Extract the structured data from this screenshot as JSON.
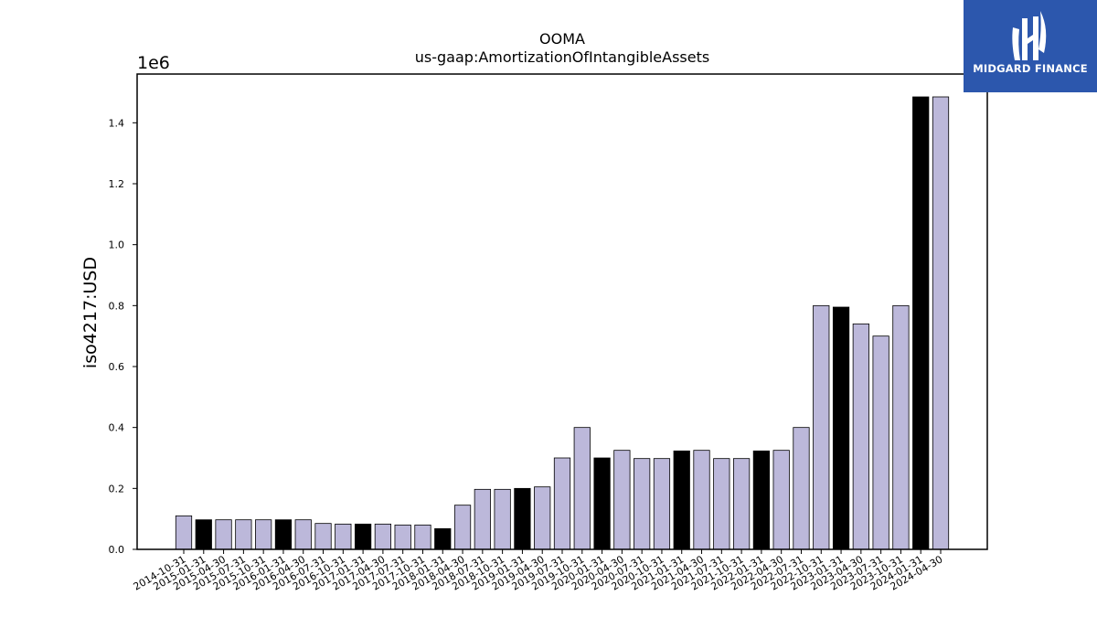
{
  "brand": {
    "name": "MIDGARD FINANCE",
    "bg_color": "#2c57ad"
  },
  "chart_data": {
    "type": "bar",
    "title": "OOMA",
    "subtitle": "us-gaap:AmortizationOfIntangibleAssets",
    "ylabel": "iso4217:USD",
    "xlabel": "",
    "y_multiplier_label": "1e6",
    "ylim": [
      0,
      1560000
    ],
    "yticks": [
      "0.0",
      "0.2",
      "0.4",
      "0.6",
      "0.8",
      "1.0",
      "1.2",
      "1.4"
    ],
    "ytick_values": [
      0,
      200000,
      400000,
      600000,
      800000,
      1000000,
      1200000,
      1400000
    ],
    "grid": false,
    "bar_color": "#bcb8da",
    "highlight_color": "#000000",
    "categories": [
      "2014-10-31",
      "2015-01-31",
      "2015-04-30",
      "2015-07-31",
      "2015-10-31",
      "2016-01-31",
      "2016-04-30",
      "2016-07-31",
      "2016-10-31",
      "2017-01-31",
      "2017-04-30",
      "2017-07-31",
      "2017-10-31",
      "2018-01-31",
      "2018-04-30",
      "2018-07-31",
      "2018-10-31",
      "2019-01-31",
      "2019-04-30",
      "2019-07-31",
      "2019-10-31",
      "2020-01-31",
      "2020-04-30",
      "2020-07-31",
      "2020-10-31",
      "2021-01-31",
      "2021-04-30",
      "2021-07-31",
      "2021-10-31",
      "2022-01-31",
      "2022-04-30",
      "2022-07-31",
      "2022-10-31",
      "2023-01-31",
      "2023-04-30",
      "2023-07-31",
      "2023-10-31",
      "2024-01-31",
      "2024-04-30"
    ],
    "values": [
      110000,
      97000,
      97000,
      97000,
      97000,
      97000,
      97000,
      85000,
      83000,
      83000,
      83000,
      80000,
      80000,
      68000,
      145000,
      197000,
      197000,
      200000,
      205000,
      300000,
      400000,
      300000,
      325000,
      298000,
      298000,
      323000,
      325000,
      298000,
      298000,
      323000,
      325000,
      400000,
      800000,
      795000,
      740000,
      700000,
      800000,
      1485000,
      1485000
    ],
    "highlighted": [
      false,
      true,
      false,
      false,
      false,
      true,
      false,
      false,
      false,
      true,
      false,
      false,
      false,
      true,
      false,
      false,
      false,
      true,
      false,
      false,
      false,
      true,
      false,
      false,
      false,
      true,
      false,
      false,
      false,
      true,
      false,
      false,
      false,
      true,
      false,
      false,
      false,
      true,
      false
    ]
  }
}
